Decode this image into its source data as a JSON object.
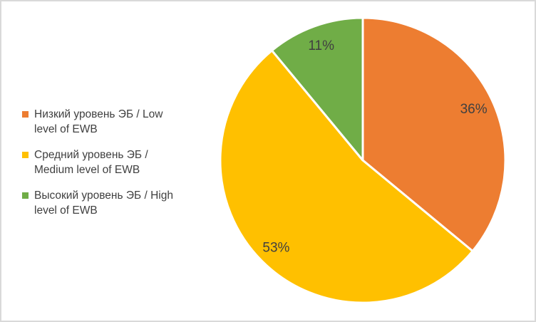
{
  "chart_data": {
    "type": "pie",
    "title": "",
    "legend_position": "left",
    "data_labels": "percent",
    "start_angle_deg": 0,
    "direction": "clockwise",
    "slices": [
      {
        "label": "Низкий уровень ЭБ / Low level of EWB",
        "value": 36,
        "data_label": "36%",
        "color": "#ED7D31"
      },
      {
        "label": "Средний уровень ЭБ / Medium level of EWB",
        "value": 53,
        "data_label": "53%",
        "color": "#FFC000"
      },
      {
        "label": "Высокий уровень ЭБ / High level of EWB",
        "value": 11,
        "data_label": "11%",
        "color": "#70AD47"
      }
    ]
  },
  "legend": {
    "items": [
      {
        "line1": "Низкий уровень ЭБ / Low",
        "line2": "level of EWB",
        "color": "#ED7D31"
      },
      {
        "line1": "Средний уровень ЭБ /",
        "line2": "Medium level of EWB",
        "color": "#FFC000"
      },
      {
        "line1": "Высокий уровень ЭБ / High",
        "line2": "level of EWB",
        "color": "#70AD47"
      }
    ]
  },
  "styles": {
    "label_color": "#404040",
    "frame_border_color": "#D9D9D9",
    "background_color": "#FFFFFF",
    "slice_divider_color": "#FFFFFF"
  }
}
